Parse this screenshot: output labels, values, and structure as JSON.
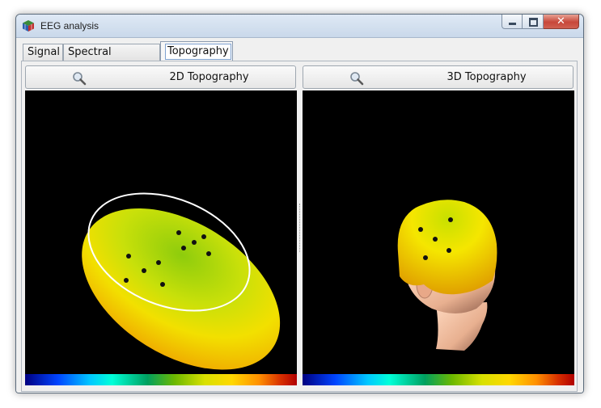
{
  "window": {
    "title": "EEG analysis",
    "app_icon": "cube-icon",
    "controls": {
      "minimize": "minimize-icon",
      "maximize": "maximize-icon",
      "close": "close-icon",
      "close_glyph": "✕"
    }
  },
  "tabs": [
    {
      "label": "Signal",
      "active": false
    },
    {
      "label": "Spectral analysis",
      "active": false
    },
    {
      "label": "Topography",
      "active": true
    }
  ],
  "views": {
    "left": {
      "button_label": "2D Topography",
      "icon": "magnifier-icon"
    },
    "right": {
      "button_label": "3D Topography",
      "icon": "magnifier-icon"
    }
  },
  "colors": {
    "viewport_bg": "#000000",
    "colormap": [
      "#000080",
      "#0044ff",
      "#00c8ff",
      "#00ffd8",
      "#00a060",
      "#6cb800",
      "#d8e000",
      "#ffd800",
      "#ff9000",
      "#d83000",
      "#b00000"
    ]
  }
}
